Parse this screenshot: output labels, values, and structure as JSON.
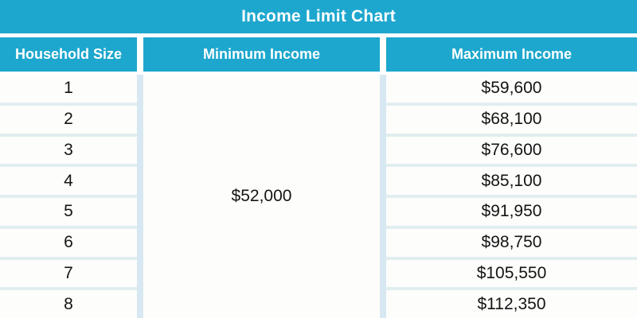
{
  "title": "Income Limit Chart",
  "colors": {
    "header_bg": "#1da7ce",
    "header_text": "#ffffff",
    "row_bg": "#fdfdfb",
    "row_separator": "#e1eef0",
    "column_divider": "#d8e8f2",
    "body_text": "#141414"
  },
  "table": {
    "columns": [
      {
        "label": "Household Size"
      },
      {
        "label": "Minimum Income"
      },
      {
        "label": "Maximum Income"
      }
    ],
    "minimum_income_merged": "$52,000",
    "rows": [
      {
        "household_size": "1",
        "maximum_income": "$59,600"
      },
      {
        "household_size": "2",
        "maximum_income": "$68,100"
      },
      {
        "household_size": "3",
        "maximum_income": "$76,600"
      },
      {
        "household_size": "4",
        "maximum_income": "$85,100"
      },
      {
        "household_size": "5",
        "maximum_income": "$91,950"
      },
      {
        "household_size": "6",
        "maximum_income": "$98,750"
      },
      {
        "household_size": "7",
        "maximum_income": "$105,550"
      },
      {
        "household_size": "8",
        "maximum_income": "$112,350"
      }
    ]
  },
  "chart_data": {
    "type": "table",
    "title": "Income Limit Chart",
    "columns": [
      "Household Size",
      "Minimum Income",
      "Maximum Income"
    ],
    "minimum_income_all_sizes": 52000,
    "rows": [
      [
        1,
        52000,
        59600
      ],
      [
        2,
        52000,
        68100
      ],
      [
        3,
        52000,
        76600
      ],
      [
        4,
        52000,
        85100
      ],
      [
        5,
        52000,
        91950
      ],
      [
        6,
        52000,
        98750
      ],
      [
        7,
        52000,
        105550
      ],
      [
        8,
        52000,
        112350
      ]
    ]
  }
}
